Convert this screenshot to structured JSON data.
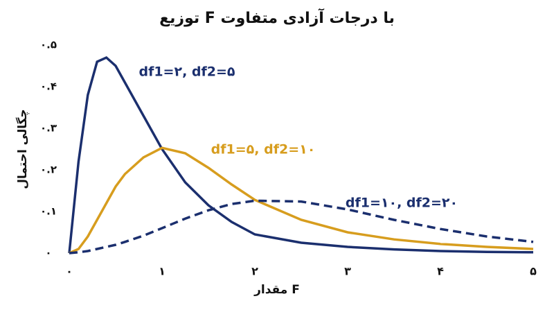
{
  "chart_data": {
    "type": "line",
    "title": "توزیع F با درجات آزادی متفاوت",
    "x_label": "مقدار F",
    "y_label": "چگالی احتمال",
    "x": [
      0,
      0.1,
      0.2,
      0.3,
      0.4,
      0.5,
      0.6,
      0.8,
      1.0,
      1.25,
      1.5,
      1.75,
      2,
      2.5,
      3,
      3.5,
      4,
      4.5,
      5
    ],
    "series": [
      {
        "name": "df1=۲, df2=۵",
        "color": "#1b2f6e",
        "dash": false,
        "values": [
          0,
          0.22,
          0.38,
          0.46,
          0.47,
          0.45,
          0.41,
          0.33,
          0.25,
          0.17,
          0.115,
          0.075,
          0.045,
          0.025,
          0.015,
          0.009,
          0.005,
          0.003,
          0.002
        ]
      },
      {
        "name": "df1=۵, df2=۱۰",
        "color": "#d79d1e",
        "dash": false,
        "values": [
          0,
          0.01,
          0.04,
          0.08,
          0.12,
          0.16,
          0.19,
          0.23,
          0.253,
          0.24,
          0.205,
          0.165,
          0.128,
          0.08,
          0.05,
          0.033,
          0.022,
          0.015,
          0.01
        ]
      },
      {
        "name": "df1=۱۰, df2=۲۰",
        "color": "#1b2f6e",
        "dash": true,
        "values": [
          0,
          0.002,
          0.005,
          0.01,
          0.015,
          0.02,
          0.027,
          0.042,
          0.06,
          0.083,
          0.103,
          0.118,
          0.126,
          0.124,
          0.105,
          0.08,
          0.058,
          0.04,
          0.027
        ]
      }
    ],
    "xlim": [
      0,
      5
    ],
    "xticks": [
      {
        "value": 0,
        "label": "۰"
      },
      {
        "value": 1,
        "label": "۱"
      },
      {
        "value": 2,
        "label": "۲"
      },
      {
        "value": 3,
        "label": "۳"
      },
      {
        "value": 4,
        "label": "۴"
      },
      {
        "value": 5,
        "label": "۵"
      }
    ],
    "ylim": [
      0,
      0.5
    ],
    "yticks": [
      {
        "value": 0,
        "label": "۰"
      },
      {
        "value": 0.1,
        "label": "۰.۱"
      },
      {
        "value": 0.2,
        "label": "۰.۲"
      },
      {
        "value": 0.3,
        "label": "۰.۳"
      },
      {
        "value": 0.4,
        "label": "۰.۴"
      },
      {
        "value": 0.5,
        "label": "۰.۵"
      }
    ]
  }
}
